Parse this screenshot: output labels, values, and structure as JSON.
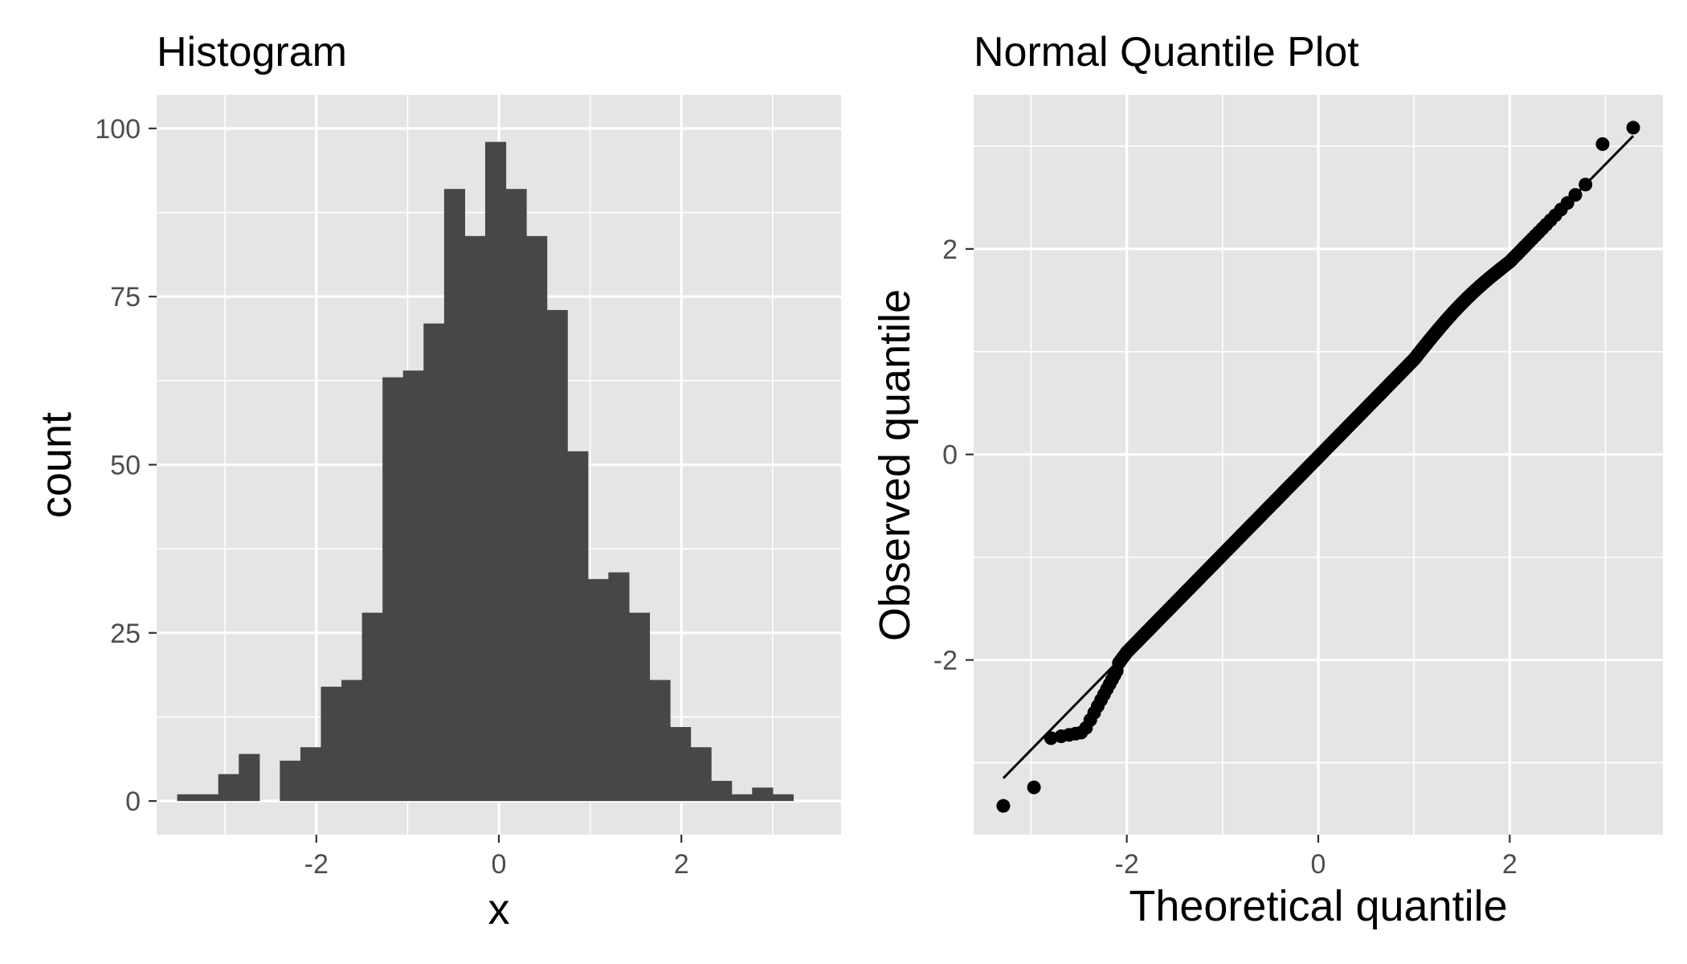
{
  "chart_data": [
    {
      "type": "bar",
      "title": "Histogram",
      "xlabel": "x",
      "ylabel": "count",
      "xlim": [
        -3.75,
        3.75
      ],
      "ylim": [
        -5,
        105
      ],
      "x_ticks": [
        -2,
        0,
        2
      ],
      "x_tick_labels": [
        "-2",
        "0",
        "2"
      ],
      "y_ticks": [
        0,
        25,
        50,
        75,
        100
      ],
      "y_tick_labels": [
        "0",
        "25",
        "50",
        "75",
        "100"
      ],
      "bin_width": 0.225,
      "bin_start": -3.525,
      "values": [
        1,
        1,
        4,
        7,
        0,
        6,
        8,
        17,
        18,
        28,
        63,
        64,
        71,
        91,
        84,
        98,
        91,
        84,
        73,
        52,
        33,
        34,
        28,
        18,
        11,
        8,
        3,
        1,
        2,
        1
      ],
      "bar_color": "#474747",
      "panel_background": "#e5e5e5",
      "grid": true,
      "grid_color": "#ffffff"
    },
    {
      "type": "scatter",
      "title": "Normal Quantile Plot",
      "xlabel": "Theoretical quantile",
      "ylabel": "Observed quantile",
      "xlim": [
        -3.6,
        3.6
      ],
      "ylim": [
        -3.7,
        3.5
      ],
      "x_ticks": [
        -2,
        0,
        2
      ],
      "x_tick_labels": [
        "-2",
        "0",
        "2"
      ],
      "y_ticks": [
        -2,
        0,
        2
      ],
      "y_tick_labels": [
        "-2",
        "0",
        "2"
      ],
      "reference_line": {
        "x": [
          -3.29,
          3.29
        ],
        "y": [
          -3.15,
          3.1
        ]
      },
      "sample_size": 1000,
      "extreme_points": [
        {
          "x": -3.29,
          "y": -3.42
        },
        {
          "x": -2.97,
          "y": -3.24
        },
        {
          "x": 2.97,
          "y": 3.02
        },
        {
          "x": 3.29,
          "y": 3.18
        }
      ],
      "point_color": "#000000",
      "panel_background": "#e5e5e5",
      "grid": true,
      "grid_color": "#ffffff"
    }
  ]
}
